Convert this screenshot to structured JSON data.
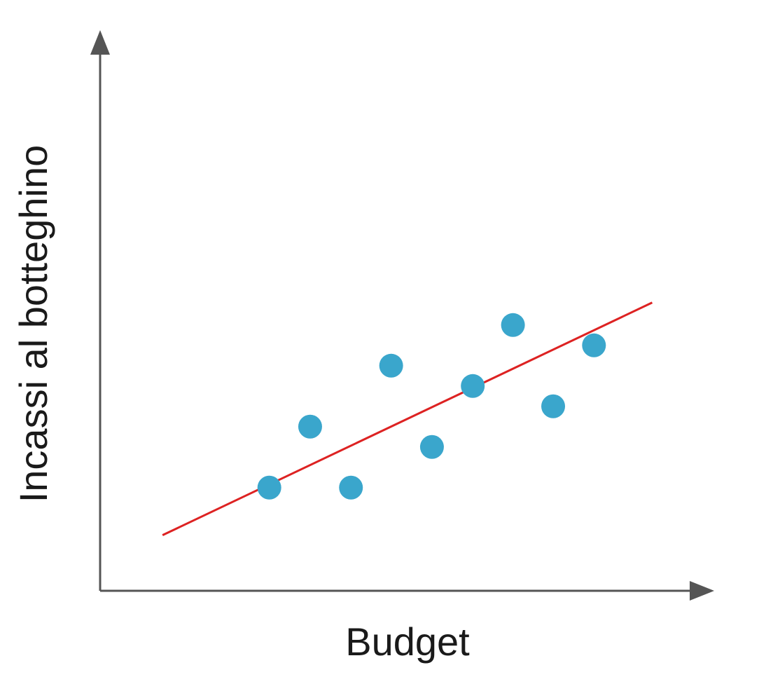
{
  "chart_data": {
    "type": "scatter",
    "xlabel": "Budget",
    "ylabel": "Incassi al botteghino",
    "x": [
      28.2,
      35.0,
      41.8,
      48.5,
      55.3,
      62.1,
      68.8,
      75.5,
      82.3
    ],
    "values": [
      19.3,
      30.7,
      19.3,
      42.1,
      26.9,
      38.3,
      49.7,
      34.5,
      45.9
    ],
    "color": "#3aa6cc",
    "fit": {
      "x": [
        10.4,
        92.0
      ],
      "values": [
        10.4,
        53.9
      ],
      "color": "#dd2222"
    },
    "xlim": [
      0,
      100
    ],
    "ylim": [
      0,
      100
    ]
  }
}
